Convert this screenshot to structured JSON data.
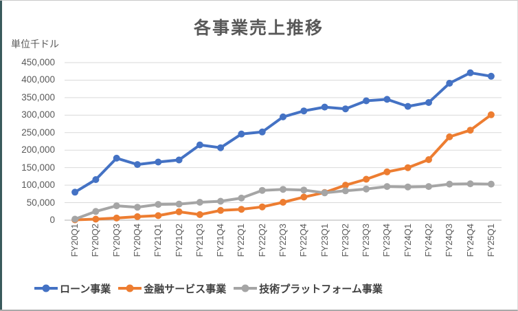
{
  "chart_data": {
    "type": "line",
    "title": "各事業売上推移",
    "unit_label": "単位千ドル",
    "categories": [
      "FY20Q1",
      "FY20Q2",
      "FY20Q3",
      "FY20Q4",
      "FY21Q1",
      "FY21Q2",
      "FY21Q3",
      "FY21Q4",
      "FY22Q1",
      "FY22Q2",
      "FY22Q3",
      "FY22Q4",
      "FY23Q1",
      "FY23Q2",
      "FY23Q3",
      "FY23Q4",
      "FY24Q1",
      "FY24Q2",
      "FY24Q3",
      "FY24Q4",
      "FY25Q1"
    ],
    "series": [
      {
        "name": "ローン事業",
        "color": "#4472C4",
        "values": [
          80000,
          116000,
          177000,
          159000,
          166000,
          172000,
          215000,
          207000,
          246000,
          252000,
          295000,
          312000,
          323000,
          318000,
          341000,
          345000,
          325000,
          336000,
          391000,
          421000,
          411000
        ]
      },
      {
        "name": "金融サービス事業",
        "color": "#ED7D31",
        "values": [
          1000,
          3000,
          6000,
          10000,
          13000,
          24000,
          16000,
          28000,
          31000,
          38000,
          51000,
          66000,
          79000,
          100000,
          117000,
          138000,
          150000,
          173000,
          238000,
          257000,
          301000
        ]
      },
      {
        "name": "技術プラットフォーム事業",
        "color": "#A5A5A5",
        "values": [
          3000,
          25000,
          41000,
          37000,
          45000,
          46000,
          51000,
          54000,
          63000,
          85000,
          88000,
          86000,
          78000,
          84000,
          89000,
          96000,
          95000,
          96000,
          103000,
          104000,
          103000
        ]
      }
    ],
    "ylim": [
      0,
      450000
    ],
    "y_tick_step": 50000,
    "y_tick_labels": [
      "0",
      "50,000",
      "100,000",
      "150,000",
      "200,000",
      "250,000",
      "300,000",
      "350,000",
      "400,000",
      "450,000"
    ],
    "grid": true,
    "legend_position": "bottom",
    "gridline_color": "#D9D9D9",
    "axis_line_color": "#BFBFBF",
    "text_color": "#595959"
  }
}
